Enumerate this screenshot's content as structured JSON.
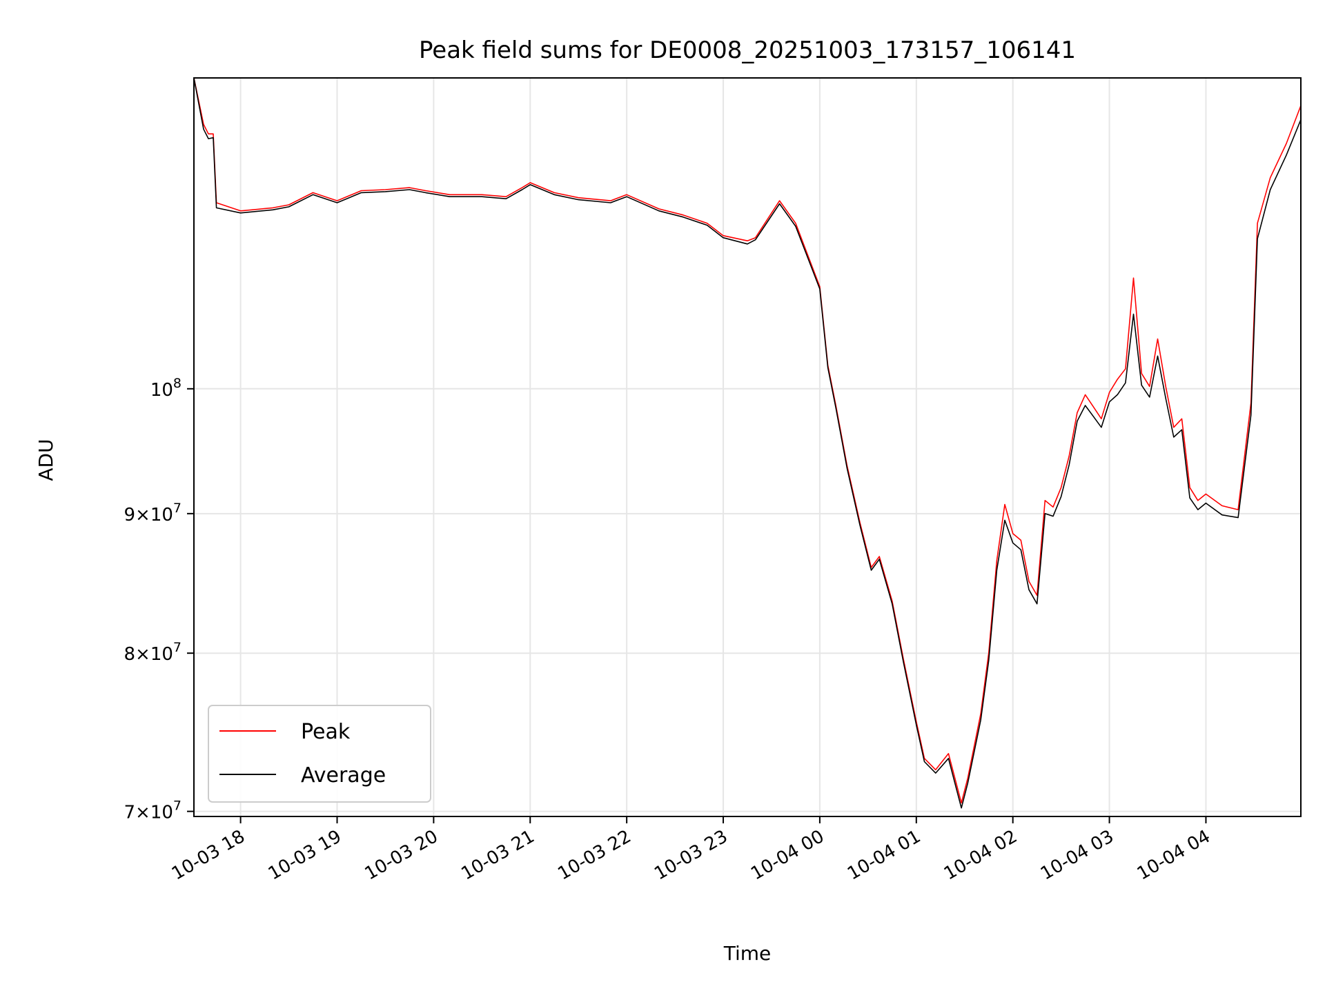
{
  "chart_data": {
    "type": "line",
    "title": "Peak field sums for DE0008_20251003_173157_106141",
    "xlabel": "Time",
    "ylabel": "ADU",
    "yscale": "log",
    "grid": true,
    "legend_position": "lower-left",
    "xlim": [
      "2025-10-03 17:31",
      "2025-10-04 04:59"
    ],
    "ylim": [
      69700000,
      130000000
    ],
    "x_ticks": [
      {
        "x": "2025-10-03 18:00",
        "label": "10-03 18"
      },
      {
        "x": "2025-10-03 19:00",
        "label": "10-03 19"
      },
      {
        "x": "2025-10-03 20:00",
        "label": "10-03 20"
      },
      {
        "x": "2025-10-03 21:00",
        "label": "10-03 21"
      },
      {
        "x": "2025-10-03 22:00",
        "label": "10-03 22"
      },
      {
        "x": "2025-10-03 23:00",
        "label": "10-03 23"
      },
      {
        "x": "2025-10-04 00:00",
        "label": "10-04 00"
      },
      {
        "x": "2025-10-04 01:00",
        "label": "10-04 01"
      },
      {
        "x": "2025-10-04 02:00",
        "label": "10-04 02"
      },
      {
        "x": "2025-10-04 03:00",
        "label": "10-04 03"
      },
      {
        "x": "2025-10-04 04:00",
        "label": "10-04 04"
      }
    ],
    "y_ticks": [
      {
        "value": 70000000,
        "mantissa": "7",
        "exponent": "7"
      },
      {
        "value": 80000000,
        "mantissa": "8",
        "exponent": "7"
      },
      {
        "value": 90000000,
        "mantissa": "9",
        "exponent": "7"
      },
      {
        "value": 100000000,
        "mantissa": "",
        "exponent": "8"
      }
    ],
    "series": [
      {
        "name": "Peak",
        "color": "#ff0000",
        "x": [
          "2025-10-03 17:31",
          "2025-10-03 17:37",
          "2025-10-03 17:40",
          "2025-10-03 17:43",
          "2025-10-03 17:45",
          "2025-10-03 18:00",
          "2025-10-03 18:20",
          "2025-10-03 18:30",
          "2025-10-03 18:45",
          "2025-10-03 19:00",
          "2025-10-03 19:15",
          "2025-10-03 19:30",
          "2025-10-03 19:45",
          "2025-10-03 19:55",
          "2025-10-03 20:10",
          "2025-10-03 20:30",
          "2025-10-03 20:45",
          "2025-10-03 20:55",
          "2025-10-03 21:00",
          "2025-10-03 21:15",
          "2025-10-03 21:30",
          "2025-10-03 21:50",
          "2025-10-03 22:00",
          "2025-10-03 22:20",
          "2025-10-03 22:35",
          "2025-10-03 22:50",
          "2025-10-03 23:00",
          "2025-10-03 23:15",
          "2025-10-03 23:20",
          "2025-10-03 23:35",
          "2025-10-03 23:45",
          "2025-10-04 00:00",
          "2025-10-04 00:05",
          "2025-10-04 00:10",
          "2025-10-04 00:17",
          "2025-10-04 00:25",
          "2025-10-04 00:32",
          "2025-10-04 00:37",
          "2025-10-04 00:45",
          "2025-10-04 00:52",
          "2025-10-04 01:00",
          "2025-10-04 01:05",
          "2025-10-04 01:12",
          "2025-10-04 01:20",
          "2025-10-04 01:28",
          "2025-10-04 01:32",
          "2025-10-04 01:40",
          "2025-10-04 01:45",
          "2025-10-04 01:50",
          "2025-10-04 01:55",
          "2025-10-04 02:00",
          "2025-10-04 02:05",
          "2025-10-04 02:10",
          "2025-10-04 02:15",
          "2025-10-04 02:20",
          "2025-10-04 02:25",
          "2025-10-04 02:30",
          "2025-10-04 02:35",
          "2025-10-04 02:40",
          "2025-10-04 02:45",
          "2025-10-04 02:50",
          "2025-10-04 02:55",
          "2025-10-04 03:00",
          "2025-10-04 03:05",
          "2025-10-04 03:10",
          "2025-10-04 03:15",
          "2025-10-04 03:20",
          "2025-10-04 03:25",
          "2025-10-04 03:30",
          "2025-10-04 03:35",
          "2025-10-04 03:40",
          "2025-10-04 03:45",
          "2025-10-04 03:50",
          "2025-10-04 03:55",
          "2025-10-04 04:00",
          "2025-10-04 04:10",
          "2025-10-04 04:20",
          "2025-10-04 04:28",
          "2025-10-04 04:32",
          "2025-10-04 04:40",
          "2025-10-04 04:50",
          "2025-10-04 04:59"
        ],
        "y": [
          130000000,
          125000000,
          124000000,
          124000000,
          117000000,
          116200000,
          116500000,
          116800000,
          118000000,
          117200000,
          118200000,
          118300000,
          118500000,
          118200000,
          117800000,
          117800000,
          117600000,
          118500000,
          119000000,
          118000000,
          117500000,
          117200000,
          117800000,
          116400000,
          115800000,
          115000000,
          113800000,
          113300000,
          113600000,
          117200000,
          115000000,
          109000000,
          102000000,
          98600000,
          93700000,
          89300000,
          86000000,
          86800000,
          83600000,
          79600000,
          75500000,
          73200000,
          72500000,
          73500000,
          70500000,
          72000000,
          76000000,
          80000000,
          86500000,
          90700000,
          88500000,
          88000000,
          85000000,
          84000000,
          91000000,
          90500000,
          92000000,
          94500000,
          98000000,
          99500000,
          98500000,
          97500000,
          99700000,
          100800000,
          101700000,
          109800000,
          101300000,
          100200000,
          104300000,
          100200000,
          96800000,
          97500000,
          92000000,
          91000000,
          91500000,
          90600000,
          90300000,
          98800000,
          115000000,
          119500000,
          123000000,
          127000000
        ]
      },
      {
        "name": "Average",
        "color": "#000000",
        "x": [
          "2025-10-03 17:31",
          "2025-10-03 17:37",
          "2025-10-03 17:40",
          "2025-10-03 17:43",
          "2025-10-03 17:45",
          "2025-10-03 18:00",
          "2025-10-03 18:20",
          "2025-10-03 18:30",
          "2025-10-03 18:45",
          "2025-10-03 19:00",
          "2025-10-03 19:15",
          "2025-10-03 19:30",
          "2025-10-03 19:45",
          "2025-10-03 19:55",
          "2025-10-03 20:10",
          "2025-10-03 20:30",
          "2025-10-03 20:45",
          "2025-10-03 20:55",
          "2025-10-03 21:00",
          "2025-10-03 21:15",
          "2025-10-03 21:30",
          "2025-10-03 21:50",
          "2025-10-03 22:00",
          "2025-10-03 22:20",
          "2025-10-03 22:35",
          "2025-10-03 22:50",
          "2025-10-03 23:00",
          "2025-10-03 23:15",
          "2025-10-03 23:20",
          "2025-10-03 23:35",
          "2025-10-03 23:45",
          "2025-10-04 00:00",
          "2025-10-04 00:05",
          "2025-10-04 00:10",
          "2025-10-04 00:17",
          "2025-10-04 00:25",
          "2025-10-04 00:32",
          "2025-10-04 00:37",
          "2025-10-04 00:45",
          "2025-10-04 00:52",
          "2025-10-04 01:00",
          "2025-10-04 01:05",
          "2025-10-04 01:12",
          "2025-10-04 01:20",
          "2025-10-04 01:28",
          "2025-10-04 01:32",
          "2025-10-04 01:40",
          "2025-10-04 01:45",
          "2025-10-04 01:50",
          "2025-10-04 01:55",
          "2025-10-04 02:00",
          "2025-10-04 02:05",
          "2025-10-04 02:10",
          "2025-10-04 02:15",
          "2025-10-04 02:20",
          "2025-10-04 02:25",
          "2025-10-04 02:30",
          "2025-10-04 02:35",
          "2025-10-04 02:40",
          "2025-10-04 02:45",
          "2025-10-04 02:50",
          "2025-10-04 02:55",
          "2025-10-04 03:00",
          "2025-10-04 03:05",
          "2025-10-04 03:10",
          "2025-10-04 03:15",
          "2025-10-04 03:20",
          "2025-10-04 03:25",
          "2025-10-04 03:30",
          "2025-10-04 03:35",
          "2025-10-04 03:40",
          "2025-10-04 03:45",
          "2025-10-04 03:50",
          "2025-10-04 03:55",
          "2025-10-04 04:00",
          "2025-10-04 04:10",
          "2025-10-04 04:20",
          "2025-10-04 04:28",
          "2025-10-04 04:32",
          "2025-10-04 04:40",
          "2025-10-04 04:50",
          "2025-10-04 04:59"
        ],
        "y": [
          130000000,
          124500000,
          123500000,
          123600000,
          116500000,
          116000000,
          116300000,
          116600000,
          117800000,
          117000000,
          118000000,
          118100000,
          118300000,
          118000000,
          117600000,
          117600000,
          117400000,
          118300000,
          118800000,
          117800000,
          117300000,
          117000000,
          117600000,
          116200000,
          115600000,
          114800000,
          113600000,
          113000000,
          113400000,
          116900000,
          114700000,
          108800000,
          101800000,
          98400000,
          93500000,
          89100000,
          85800000,
          86600000,
          83400000,
          79400000,
          75300000,
          73000000,
          72300000,
          73200000,
          70200000,
          71700000,
          75600000,
          79500000,
          85800000,
          89500000,
          87800000,
          87300000,
          84400000,
          83400000,
          90000000,
          89800000,
          91300000,
          93800000,
          97300000,
          98600000,
          97700000,
          96800000,
          98900000,
          99500000,
          100500000,
          106500000,
          100300000,
          99300000,
          102800000,
          99200000,
          96000000,
          96600000,
          91200000,
          90300000,
          90800000,
          89900000,
          89700000,
          97800000,
          113500000,
          118300000,
          121800000,
          125500000
        ]
      }
    ]
  }
}
